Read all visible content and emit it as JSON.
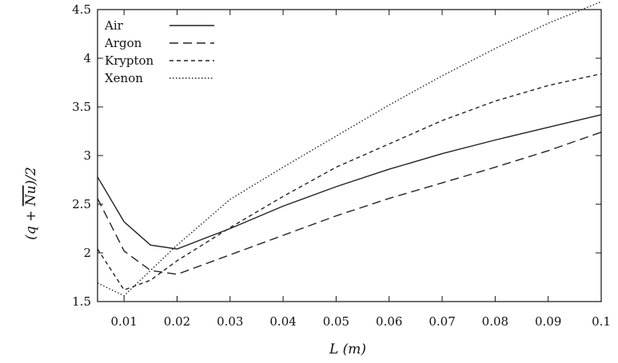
{
  "chart_data": {
    "type": "line",
    "title": "",
    "xlabel": "L (m)",
    "ylabel": "(q + Nu)/2",
    "xlim": [
      0.005,
      0.1
    ],
    "ylim": [
      1.5,
      4.5
    ],
    "grid": false,
    "legend_position": "top-left",
    "xticks": [
      0.01,
      0.02,
      0.03,
      0.04,
      0.05,
      0.06,
      0.07,
      0.08,
      0.09,
      0.1
    ],
    "xtick_labels": [
      "0.01",
      "0.02",
      "0.03",
      "0.04",
      "0.05",
      "0.06",
      "0.07",
      "0.08",
      "0.09",
      "0.1"
    ],
    "yticks": [
      1.5,
      2,
      2.5,
      3,
      3.5,
      4,
      4.5
    ],
    "ytick_labels": [
      "1.5",
      "2",
      "2.5",
      "3",
      "3.5",
      "4",
      "4.5"
    ],
    "series": [
      {
        "name": "Air",
        "style": "solid",
        "x": [
          0.005,
          0.01,
          0.015,
          0.02,
          0.03,
          0.04,
          0.05,
          0.06,
          0.07,
          0.08,
          0.09,
          0.1
        ],
        "y": [
          2.78,
          2.32,
          2.08,
          2.04,
          2.25,
          2.48,
          2.68,
          2.86,
          3.02,
          3.16,
          3.29,
          3.42
        ]
      },
      {
        "name": "Argon",
        "style": "dashed",
        "x": [
          0.005,
          0.01,
          0.015,
          0.02,
          0.03,
          0.04,
          0.05,
          0.06,
          0.07,
          0.08,
          0.09,
          0.1
        ],
        "y": [
          2.56,
          2.02,
          1.82,
          1.78,
          1.98,
          2.18,
          2.38,
          2.56,
          2.72,
          2.88,
          3.05,
          3.24
        ]
      },
      {
        "name": "Krypton",
        "style": "short-dashed",
        "x": [
          0.005,
          0.01,
          0.015,
          0.02,
          0.03,
          0.04,
          0.05,
          0.06,
          0.07,
          0.08,
          0.09,
          0.1
        ],
        "y": [
          2.04,
          1.62,
          1.72,
          1.92,
          2.26,
          2.58,
          2.88,
          3.12,
          3.36,
          3.56,
          3.72,
          3.84
        ]
      },
      {
        "name": "Xenon",
        "style": "dotted",
        "x": [
          0.005,
          0.01,
          0.02,
          0.03,
          0.04,
          0.05,
          0.06,
          0.07,
          0.08,
          0.09,
          0.1
        ],
        "y": [
          1.69,
          1.56,
          2.08,
          2.55,
          2.88,
          3.2,
          3.52,
          3.82,
          4.1,
          4.36,
          4.58
        ]
      }
    ]
  }
}
